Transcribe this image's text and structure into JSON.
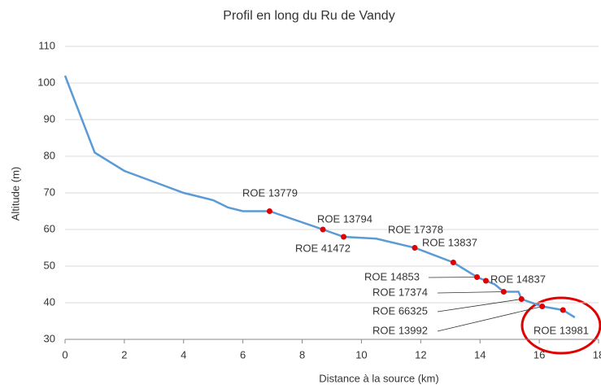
{
  "chart_data": {
    "type": "line",
    "title": "Profil en long du Ru de Vandy",
    "x_label": "Distance à la source (km)",
    "y_label": "Altitude (m)",
    "xlim": [
      0,
      18
    ],
    "xticks": [
      0,
      2,
      4,
      6,
      8,
      10,
      12,
      14,
      16,
      18
    ],
    "ylim": [
      30,
      110
    ],
    "yticks": [
      30,
      40,
      50,
      60,
      70,
      80,
      90,
      100,
      110
    ],
    "grid": true,
    "series": [
      {
        "color": "#5b9bd5",
        "x": [
          0,
          1,
          2,
          3,
          4,
          5,
          5.5,
          6,
          6.9,
          8.7,
          9.4,
          10.5,
          11.8,
          13.1,
          13.9,
          14.2,
          14.5,
          14.8,
          15.3,
          15.4,
          16.1,
          16.8,
          17.2
        ],
        "values": [
          102,
          81,
          76,
          73,
          70,
          68,
          66,
          65,
          65,
          60,
          58,
          57.5,
          55,
          51,
          47,
          46,
          45,
          43,
          43,
          41,
          39,
          38,
          36
        ]
      }
    ],
    "points": {
      "color": "#e00000",
      "labels": [
        "ROE 13779",
        "ROE 13794",
        "ROE 41472",
        "ROE 17378",
        "ROE 13837",
        "ROE 14853",
        "ROE 14837",
        "ROE 17374",
        "ROE 66325",
        "ROE 13992",
        "ROE 13981"
      ],
      "x": [
        6.9,
        8.7,
        9.4,
        11.8,
        13.1,
        13.9,
        14.2,
        14.8,
        15.4,
        16.1,
        16.8
      ],
      "values": [
        65,
        60,
        58,
        55,
        51,
        47,
        46,
        43,
        41,
        39,
        38
      ]
    }
  }
}
